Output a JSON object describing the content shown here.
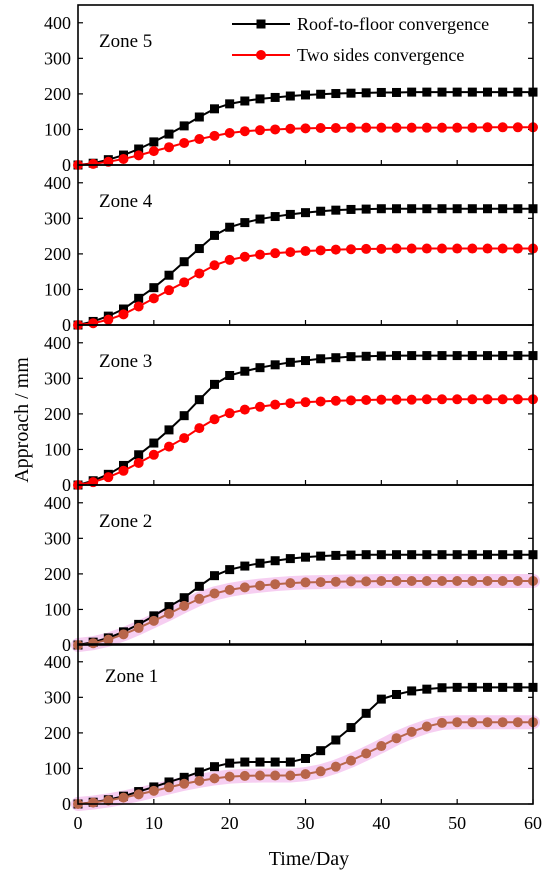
{
  "chart_data": {
    "type": "line",
    "xlabel": "Time/Day",
    "ylabel": "Approach  / mm",
    "xlim": [
      0,
      60
    ],
    "ylim": [
      0,
      450
    ],
    "x_ticks": [
      "0",
      "10",
      "20",
      "30",
      "40",
      "50",
      "60"
    ],
    "y_ticks": [
      "0",
      "100",
      "200",
      "300",
      "400"
    ],
    "legend": {
      "placement": "top-right",
      "entries": [
        "Roof-to-floor convergence",
        "Two sides convergence"
      ]
    },
    "colors": {
      "roof": "#000000",
      "sides": "#ff0000",
      "sides_overlay": "#b8654a",
      "highlight": "#f4c6ee"
    },
    "x": [
      0,
      2,
      4,
      6,
      8,
      10,
      12,
      14,
      16,
      18,
      20,
      22,
      24,
      26,
      28,
      30,
      32,
      34,
      36,
      38,
      40,
      42,
      44,
      46,
      48,
      50,
      52,
      54,
      56,
      58,
      60
    ],
    "panels": [
      {
        "label": "Zone 5",
        "series": [
          {
            "name": "Roof-to-floor convergence",
            "values": [
              0,
              5,
              15,
              28,
              45,
              65,
              87,
              110,
              135,
              158,
              172,
              180,
              186,
              190,
              194,
              197,
              199,
              201,
              202,
              203,
              204,
              204,
              205,
              205,
              205,
              205,
              205,
              205,
              205,
              205,
              205
            ]
          },
          {
            "name": "Two sides convergence",
            "values": [
              0,
              3,
              9,
              17,
              27,
              39,
              50,
              62,
              73,
              82,
              90,
              95,
              98,
              100,
              102,
              103,
              104,
              104,
              105,
              105,
              105,
              105,
              105,
              105,
              105,
              105,
              105,
              106,
              106,
              106,
              106
            ]
          }
        ]
      },
      {
        "label": "Zone 4",
        "series": [
          {
            "name": "Roof-to-floor convergence",
            "values": [
              0,
              10,
              25,
              45,
              75,
              105,
              140,
              178,
              215,
              252,
              275,
              288,
              298,
              305,
              311,
              316,
              320,
              323,
              325,
              326,
              327,
              327,
              327,
              327,
              327,
              327,
              327,
              327,
              327,
              327,
              327
            ]
          },
          {
            "name": "Two sides convergence",
            "values": [
              0,
              5,
              15,
              30,
              52,
              75,
              98,
              120,
              145,
              168,
              183,
              192,
              198,
              202,
              205,
              208,
              210,
              212,
              213,
              214,
              214,
              215,
              215,
              215,
              215,
              215,
              215,
              215,
              215,
              215,
              215
            ]
          }
        ]
      },
      {
        "label": "Zone 3",
        "series": [
          {
            "name": "Roof-to-floor convergence",
            "values": [
              0,
              12,
              30,
              55,
              85,
              118,
              155,
              195,
              240,
              283,
              308,
              320,
              330,
              338,
              345,
              350,
              355,
              358,
              361,
              362,
              363,
              364,
              364,
              364,
              364,
              364,
              364,
              364,
              364,
              364,
              364
            ]
          },
          {
            "name": "Two sides convergence",
            "values": [
              0,
              8,
              22,
              40,
              62,
              85,
              108,
              132,
              160,
              185,
              202,
              212,
              220,
              226,
              230,
              233,
              235,
              237,
              238,
              239,
              240,
              240,
              240,
              241,
              241,
              241,
              241,
              241,
              241,
              241,
              241
            ]
          }
        ]
      },
      {
        "label": "Zone 2",
        "series": [
          {
            "name": "Roof-to-floor convergence",
            "values": [
              0,
              8,
              20,
              37,
              58,
              82,
              108,
              133,
              165,
              195,
              212,
              222,
              230,
              237,
              243,
              247,
              250,
              252,
              253,
              254,
              254,
              254,
              254,
              254,
              254,
              254,
              254,
              254,
              254,
              254,
              254
            ]
          },
          {
            "name": "Two sides convergence",
            "values": [
              0,
              5,
              15,
              30,
              48,
              68,
              88,
              110,
              130,
              145,
              155,
              162,
              167,
              171,
              174,
              176,
              177,
              178,
              179,
              179,
              180,
              180,
              180,
              180,
              180,
              180,
              180,
              180,
              180,
              180,
              180
            ]
          }
        ]
      },
      {
        "label": "Zone 1",
        "series": [
          {
            "name": "Roof-to-floor convergence",
            "values": [
              0,
              5,
              12,
              22,
              35,
              48,
              62,
              75,
              90,
              105,
              115,
              118,
              118,
              118,
              118,
              128,
              150,
              180,
              215,
              255,
              295,
              308,
              318,
              323,
              327,
              328,
              328,
              328,
              328,
              328,
              328
            ]
          },
          {
            "name": "Two sides convergence",
            "values": [
              0,
              4,
              10,
              18,
              27,
              37,
              47,
              57,
              65,
              72,
              77,
              79,
              80,
              80,
              80,
              84,
              92,
              105,
              122,
              142,
              163,
              185,
              203,
              218,
              228,
              230,
              230,
              230,
              230,
              230,
              230
            ]
          }
        ]
      }
    ]
  }
}
